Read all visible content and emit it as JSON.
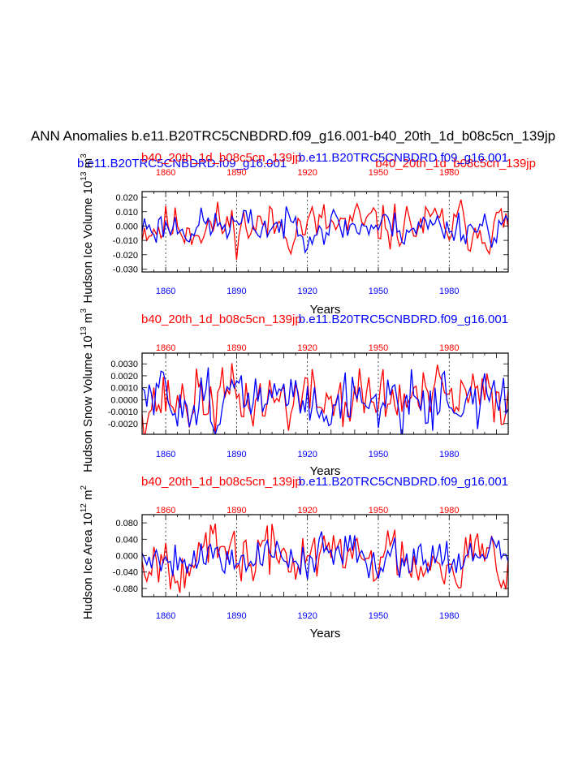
{
  "title": "ANN Anomalies b.e11.B20TRC5CNBDRD.f09_g16.001-b40_20th_1d_b08c5cn_139jp",
  "header_extra": {
    "blue_label": "b.e11.B20TRC5CNBDRD.f09_g16.001",
    "red_label": "b40_20th_1d_b08c5cn_139jp"
  },
  "colors": {
    "series_a": "#ff0000",
    "series_b": "#0000ff",
    "axis": "#000000",
    "grid": "#000000"
  },
  "chart_data": [
    {
      "type": "line",
      "ylabel": "Hudson Ice Volume 10",
      "ylabel_exp": "13",
      "ylabel_unit": "m",
      "ylabel_unit_exp": "3",
      "xlabel": "Years",
      "top_label_left": "b40_20th_1d_b08c5cn_139jp",
      "top_label_right": "b.e11.B20TRC5CNBDRD.f09_g16.001",
      "xlim": [
        1850,
        2005
      ],
      "ylim": [
        -0.032,
        0.024
      ],
      "yticks": [
        0.02,
        0.01,
        0.0,
        -0.01,
        -0.02,
        -0.03
      ],
      "ytick_labels": [
        "0.020",
        "0.010",
        "0.000",
        "-0.010",
        "-0.020",
        "-0.030"
      ],
      "xticks": [
        1860,
        1890,
        1920,
        1950,
        1980
      ],
      "xtick_labels": [
        "1860",
        "1890",
        "1920",
        "1950",
        "1980"
      ],
      "series": [
        {
          "name": "b40_20th_1d_b08c5cn_139jp",
          "amp": 0.008,
          "seed": 11
        },
        {
          "name": "b.e11.B20TRC5CNBDRD.f09_g16.001",
          "amp": 0.006,
          "seed": 23
        }
      ]
    },
    {
      "type": "line",
      "ylabel": "Hudson Snow Volume 10",
      "ylabel_exp": "13",
      "ylabel_unit": "m",
      "ylabel_unit_exp": "3",
      "xlabel": "Years",
      "top_label_left": "b40_20th_1d_b08c5cn_139jp",
      "top_label_right": "b.e11.B20TRC5CNBDRD.f09_g16.001",
      "xlim": [
        1850,
        2005
      ],
      "ylim": [
        -0.0029,
        0.0039
      ],
      "yticks": [
        0.003,
        0.002,
        0.001,
        0.0,
        -0.001,
        -0.002
      ],
      "ytick_labels": [
        "0.0030",
        "0.0020",
        "0.0010",
        "0.0000",
        "-0.0010",
        "-0.0020"
      ],
      "xticks": [
        1860,
        1890,
        1920,
        1950,
        1980
      ],
      "xtick_labels": [
        "1860",
        "1890",
        "1920",
        "1950",
        "1980"
      ],
      "series": [
        {
          "name": "b40_20th_1d_b08c5cn_139jp",
          "amp": 0.0013,
          "seed": 37
        },
        {
          "name": "b.e11.B20TRC5CNBDRD.f09_g16.001",
          "amp": 0.0012,
          "seed": 51
        }
      ]
    },
    {
      "type": "line",
      "ylabel": "Hudson Ice Area 10",
      "ylabel_exp": "12",
      "ylabel_unit": "m",
      "ylabel_unit_exp": "2",
      "xlabel": "Years",
      "top_label_left": "b40_20th_1d_b08c5cn_139jp",
      "top_label_right": "b.e11.B20TRC5CNBDRD.f09_g16.001",
      "xlim": [
        1850,
        2005
      ],
      "ylim": [
        -0.1,
        0.1
      ],
      "yticks": [
        0.08,
        0.04,
        0.0,
        -0.04,
        -0.08
      ],
      "ytick_labels": [
        "0.080",
        "0.040",
        "0.000",
        "-0.040",
        "-0.080"
      ],
      "xticks": [
        1860,
        1890,
        1920,
        1950,
        1980
      ],
      "xtick_labels": [
        "1860",
        "1890",
        "1920",
        "1950",
        "1980"
      ],
      "series": [
        {
          "name": "b40_20th_1d_b08c5cn_139jp",
          "amp": 0.035,
          "seed": 67
        },
        {
          "name": "b.e11.B20TRC5CNBDRD.f09_g16.001",
          "amp": 0.025,
          "seed": 79
        }
      ]
    }
  ]
}
